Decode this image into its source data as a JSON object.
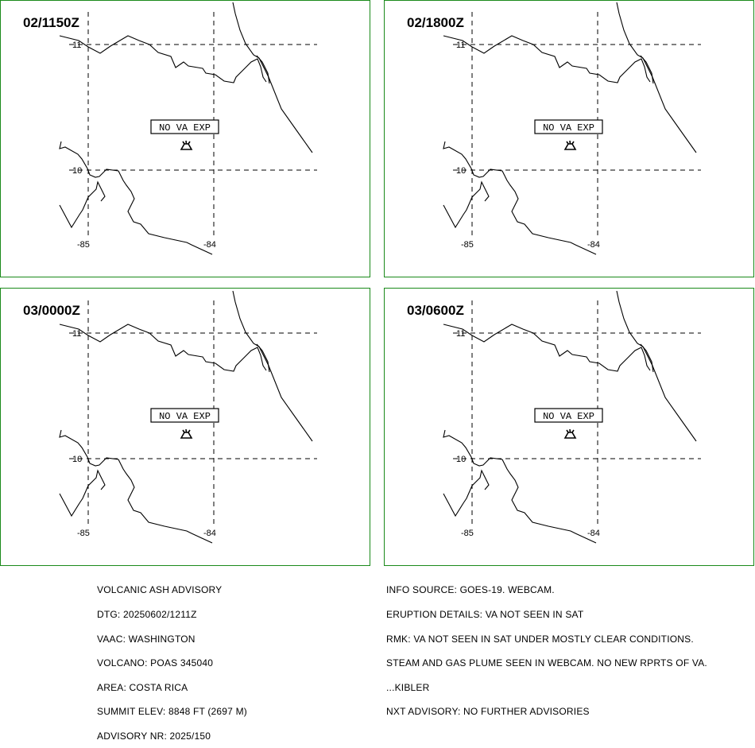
{
  "panels": [
    {
      "time": "02/1150Z",
      "status_box": "NO VA EXP"
    },
    {
      "time": "02/1800Z",
      "status_box": "NO VA EXP"
    },
    {
      "time": "03/0000Z",
      "status_box": "NO VA EXP"
    },
    {
      "time": "03/0600Z",
      "status_box": "NO VA EXP"
    }
  ],
  "grid_labels": {
    "lat_north": "11",
    "lat_south": "10",
    "lon_west": "-85",
    "lon_east": "-84"
  },
  "volcano_icon": "volcano-icon",
  "colors": {
    "panel_border": "#1a8a1a",
    "map_lines": "#000000"
  },
  "advisory_left": [
    "VOLCANIC ASH ADVISORY",
    "DTG: 20250602/1211Z",
    "VAAC: WASHINGTON",
    "VOLCANO: POAS 345040",
    "AREA: COSTA RICA",
    "SUMMIT ELEV: 8848 FT (2697 M)",
    "ADVISORY NR: 2025/150"
  ],
  "advisory_right": [
    "INFO SOURCE: GOES-19. WEBCAM.",
    "ERUPTION DETAILS: VA NOT SEEN IN SAT",
    "RMK: VA NOT SEEN IN SAT UNDER MOSTLY CLEAR CONDITIONS.",
    "STEAM AND GAS PLUME SEEN IN WEBCAM. NO NEW RPRTS OF VA.",
    "...KIBLER",
    "NXT ADVISORY: NO FURTHER ADVISORIES"
  ]
}
